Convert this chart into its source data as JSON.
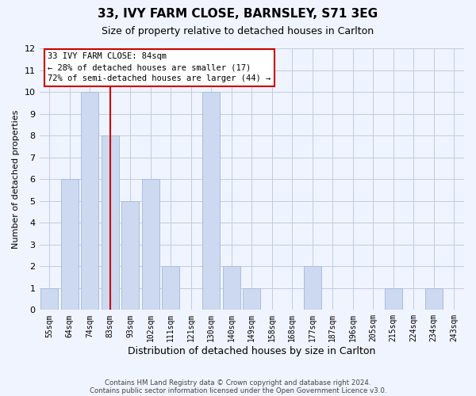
{
  "title1": "33, IVY FARM CLOSE, BARNSLEY, S71 3EG",
  "title2": "Size of property relative to detached houses in Carlton",
  "xlabel": "Distribution of detached houses by size in Carlton",
  "ylabel": "Number of detached properties",
  "bar_color": "#ccd9f0",
  "bar_edge_color": "#a8bedd",
  "bin_labels": [
    "55sqm",
    "64sqm",
    "74sqm",
    "83sqm",
    "93sqm",
    "102sqm",
    "111sqm",
    "121sqm",
    "130sqm",
    "140sqm",
    "149sqm",
    "158sqm",
    "168sqm",
    "177sqm",
    "187sqm",
    "196sqm",
    "205sqm",
    "215sqm",
    "224sqm",
    "234sqm",
    "243sqm"
  ],
  "bar_centers": [
    0,
    1,
    2,
    3,
    4,
    5,
    6,
    7,
    8,
    9,
    10,
    11,
    12,
    13,
    14,
    15,
    16,
    17,
    18,
    19,
    20
  ],
  "bar_heights": [
    1,
    6,
    10,
    8,
    5,
    6,
    2,
    0,
    10,
    2,
    1,
    0,
    0,
    2,
    0,
    0,
    0,
    1,
    0,
    1,
    0
  ],
  "ylim": [
    0,
    12
  ],
  "yticks": [
    0,
    1,
    2,
    3,
    4,
    5,
    6,
    7,
    8,
    9,
    10,
    11,
    12
  ],
  "red_line_x": 3,
  "annotation_line1": "33 IVY FARM CLOSE: 84sqm",
  "annotation_line2": "← 28% of detached houses are smaller (17)",
  "annotation_line3": "72% of semi-detached houses are larger (44) →",
  "footer1": "Contains HM Land Registry data © Crown copyright and database right 2024.",
  "footer2": "Contains public sector information licensed under the Open Government Licence v3.0.",
  "background_color": "#f0f4ff",
  "grid_color": "#c0ccdd",
  "annotation_box_color": "#ffffff",
  "annotation_box_edge_color": "#cc0000",
  "red_line_color": "#cc0000",
  "bar_width": 0.85
}
